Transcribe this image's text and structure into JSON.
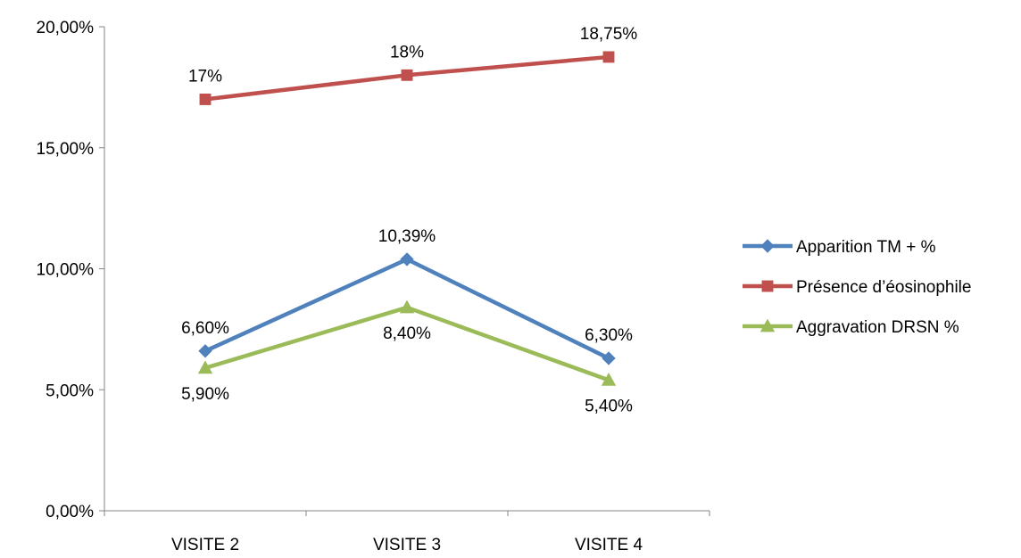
{
  "chart_data": {
    "type": "line",
    "title": "",
    "xlabel": "",
    "ylabel": "",
    "categories": [
      "VISITE 2",
      "VISITE 3",
      "VISITE 4"
    ],
    "ylim": [
      0,
      20
    ],
    "yticks": [
      0,
      5,
      10,
      15,
      20
    ],
    "ytick_labels": [
      "0,00%",
      "5,00%",
      "10,00%",
      "15,00%",
      "20,00%"
    ],
    "grid": false,
    "legend_position": "right",
    "series": [
      {
        "name": "Apparition TM + %",
        "values": [
          6.6,
          10.39,
          6.3
        ],
        "labels": [
          "6,60%",
          "10,39%",
          "6,30%"
        ],
        "label_positions": [
          "above",
          "above",
          "above"
        ],
        "color": "#4f81bd",
        "marker": "diamond"
      },
      {
        "name": "Présence d’éosinophile",
        "values": [
          17,
          18,
          18.75
        ],
        "labels": [
          "17%",
          "18%",
          "18,75%"
        ],
        "label_positions": [
          "above",
          "above",
          "above"
        ],
        "color": "#c0504d",
        "marker": "square"
      },
      {
        "name": "Aggravation DRSN %",
        "values": [
          5.9,
          8.4,
          5.4
        ],
        "labels": [
          "5,90%",
          "8,40%",
          "5,40%"
        ],
        "label_positions": [
          "below",
          "below",
          "below"
        ],
        "color": "#9bbb59",
        "marker": "triangle"
      }
    ]
  }
}
